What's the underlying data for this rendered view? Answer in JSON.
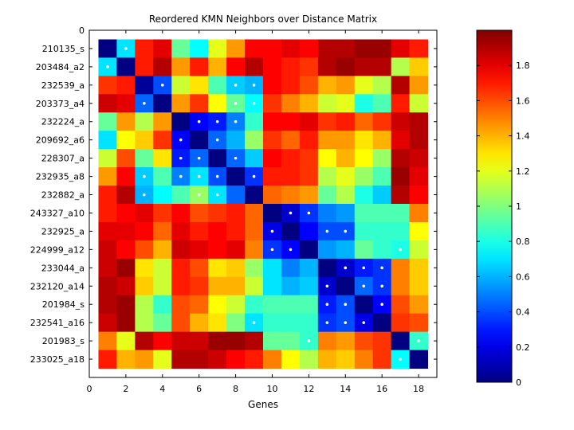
{
  "chart_data": {
    "type": "heatmap",
    "title": "Reordered KMN Neighbors over Distance Matrix",
    "xlabel": "Genes",
    "ylabel": "",
    "x_ticks": [
      0,
      2,
      4,
      6,
      8,
      10,
      12,
      14,
      16,
      18
    ],
    "y_ticks_top": "0",
    "xlim": [
      0,
      19
    ],
    "ylim": [
      0,
      19
    ],
    "row_labels": [
      "210135_s",
      "203484_a2",
      "232539_a",
      "203373_a4",
      "232224_a",
      "209692_a6",
      "228307_a",
      "232935_a8",
      "232882_a",
      "243327_a10",
      "232925_a",
      "224999_a12",
      "233044_a",
      "232120_a14",
      "201984_s",
      "232541_a16",
      "201983_s",
      "233025_a18"
    ],
    "colorbar": {
      "ticks": [
        0,
        0.2,
        0.4,
        0.6,
        0.8,
        1,
        1.2,
        1.4,
        1.6,
        1.8
      ],
      "min": 0,
      "max": 2,
      "colormap": "jet"
    },
    "matrix": [
      [
        0.0,
        0.7,
        1.7,
        1.8,
        0.95,
        0.75,
        1.2,
        1.45,
        1.75,
        1.75,
        1.8,
        1.75,
        1.9,
        1.9,
        1.95,
        1.95,
        1.8,
        1.7
      ],
      [
        0.7,
        0.0,
        1.7,
        1.9,
        1.45,
        1.7,
        1.4,
        1.75,
        1.9,
        1.75,
        1.7,
        1.65,
        1.9,
        1.95,
        1.9,
        1.9,
        1.1,
        1.35
      ],
      [
        1.65,
        1.7,
        0.05,
        0.4,
        1.15,
        1.3,
        0.9,
        0.65,
        0.6,
        1.75,
        1.7,
        1.6,
        1.4,
        1.45,
        1.2,
        1.1,
        1.9,
        1.45
      ],
      [
        1.85,
        1.8,
        0.45,
        0.0,
        1.45,
        1.65,
        1.25,
        0.95,
        0.75,
        1.65,
        1.5,
        1.4,
        1.15,
        1.2,
        0.8,
        0.9,
        1.7,
        1.15
      ],
      [
        0.95,
        1.45,
        1.1,
        1.45,
        0.0,
        0.25,
        0.3,
        0.5,
        0.85,
        1.75,
        1.75,
        1.8,
        1.65,
        1.7,
        1.55,
        1.65,
        1.85,
        1.9
      ],
      [
        0.7,
        1.25,
        1.35,
        1.65,
        0.25,
        0.0,
        0.45,
        0.6,
        1.05,
        1.65,
        1.55,
        1.7,
        1.45,
        1.45,
        1.3,
        1.4,
        1.8,
        1.9
      ],
      [
        1.15,
        1.6,
        0.95,
        1.3,
        0.3,
        0.45,
        0.0,
        0.45,
        0.65,
        1.75,
        1.7,
        1.65,
        1.25,
        1.4,
        1.25,
        1.05,
        1.9,
        1.85
      ],
      [
        1.45,
        1.75,
        0.65,
        0.9,
        0.5,
        0.7,
        0.4,
        0.0,
        0.35,
        1.7,
        1.7,
        1.65,
        1.1,
        1.2,
        1.05,
        0.9,
        1.95,
        1.8
      ],
      [
        1.7,
        1.9,
        0.6,
        0.75,
        0.9,
        1.05,
        0.7,
        0.45,
        0.0,
        1.55,
        1.5,
        1.45,
        0.95,
        1.1,
        0.8,
        0.65,
        1.9,
        1.75
      ],
      [
        1.7,
        1.75,
        1.8,
        1.65,
        1.75,
        1.6,
        1.65,
        1.7,
        1.55,
        0.0,
        0.15,
        0.35,
        0.5,
        0.55,
        0.9,
        0.9,
        0.9,
        1.5
      ],
      [
        1.8,
        1.8,
        1.75,
        1.55,
        1.8,
        1.7,
        1.75,
        1.7,
        1.55,
        0.2,
        0.0,
        0.25,
        0.4,
        0.4,
        0.85,
        0.85,
        0.85,
        1.25
      ],
      [
        1.85,
        1.75,
        1.6,
        1.4,
        1.85,
        1.8,
        1.75,
        1.8,
        1.5,
        0.35,
        0.25,
        0.0,
        0.55,
        0.6,
        0.95,
        0.85,
        0.8,
        1.15
      ],
      [
        1.85,
        1.95,
        1.3,
        1.15,
        1.7,
        1.6,
        1.3,
        1.35,
        1.05,
        0.7,
        0.5,
        0.6,
        0.0,
        0.15,
        0.3,
        0.35,
        1.5,
        1.35
      ],
      [
        1.9,
        1.85,
        1.35,
        1.15,
        1.7,
        1.65,
        1.4,
        1.4,
        1.15,
        0.7,
        0.6,
        0.65,
        0.15,
        0.0,
        0.45,
        0.35,
        1.5,
        1.35
      ],
      [
        1.9,
        1.95,
        1.1,
        0.85,
        1.6,
        1.55,
        1.25,
        1.15,
        0.85,
        0.9,
        0.9,
        0.9,
        0.3,
        0.4,
        0.0,
        0.25,
        1.6,
        1.45
      ],
      [
        1.85,
        1.95,
        1.1,
        0.95,
        1.6,
        1.4,
        1.3,
        1.0,
        0.7,
        0.85,
        0.85,
        0.85,
        0.35,
        0.4,
        0.2,
        0.0,
        1.65,
        1.6
      ],
      [
        1.5,
        1.2,
        1.9,
        1.75,
        1.85,
        1.85,
        1.95,
        1.95,
        1.9,
        0.95,
        0.95,
        0.85,
        1.5,
        1.45,
        1.6,
        1.65,
        0.0,
        0.85
      ],
      [
        1.7,
        1.4,
        1.45,
        1.2,
        1.9,
        1.9,
        1.85,
        1.75,
        1.7,
        1.5,
        1.25,
        1.1,
        1.4,
        1.35,
        1.5,
        1.65,
        0.75,
        0.0
      ]
    ],
    "neighbor_marks": [
      [
        1,
        2
      ],
      [
        2,
        1
      ],
      [
        3,
        4
      ],
      [
        4,
        3
      ],
      [
        8,
        3
      ],
      [
        9,
        3
      ],
      [
        5,
        6
      ],
      [
        5,
        7
      ],
      [
        5,
        8
      ],
      [
        6,
        5
      ],
      [
        6,
        7
      ],
      [
        7,
        5
      ],
      [
        7,
        6
      ],
      [
        7,
        8
      ],
      [
        8,
        5
      ],
      [
        8,
        6
      ],
      [
        8,
        7
      ],
      [
        9,
        6
      ],
      [
        9,
        7
      ],
      [
        8,
        9
      ],
      [
        3,
        8
      ],
      [
        3,
        9
      ],
      [
        4,
        8
      ],
      [
        4,
        9
      ],
      [
        10,
        11
      ],
      [
        10,
        12
      ],
      [
        11,
        10
      ],
      [
        11,
        13
      ],
      [
        11,
        14
      ],
      [
        12,
        10
      ],
      [
        12,
        11
      ],
      [
        13,
        14
      ],
      [
        13,
        15
      ],
      [
        13,
        16
      ],
      [
        14,
        13
      ],
      [
        14,
        15
      ],
      [
        15,
        14
      ],
      [
        15,
        16
      ],
      [
        16,
        13
      ],
      [
        16,
        14
      ],
      [
        16,
        15
      ],
      [
        14,
        16
      ],
      [
        15,
        13
      ],
      [
        17,
        18
      ],
      [
        18,
        17
      ],
      [
        12,
        17
      ],
      [
        16,
        9
      ],
      [
        17,
        12
      ],
      [
        2,
        1
      ]
    ]
  }
}
